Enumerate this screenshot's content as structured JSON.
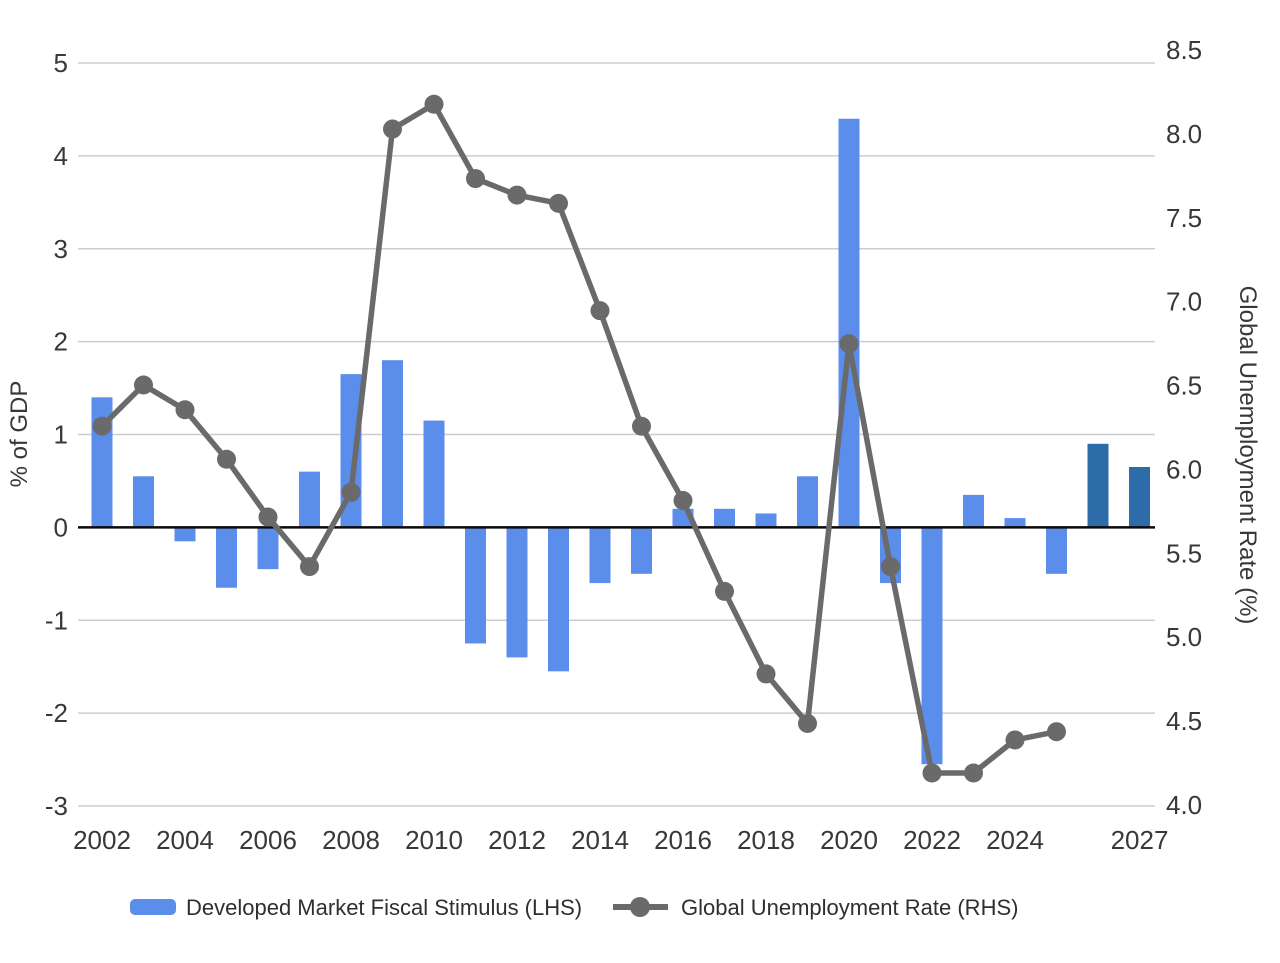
{
  "chart": {
    "title": "",
    "left_axis_title": "% of GDP",
    "right_axis_title": "Global Unemployment Rate (%)",
    "legend": {
      "bar_label": "Developed Market Fiscal Stimulus (LHS)",
      "line_label": "Global Unemployment Rate (RHS)"
    }
  },
  "chart_data": {
    "type": "combo_bar_line",
    "x": [
      2002,
      2003,
      2004,
      2005,
      2006,
      2007,
      2008,
      2009,
      2010,
      2011,
      2012,
      2013,
      2014,
      2015,
      2016,
      2017,
      2018,
      2019,
      2020,
      2021,
      2022,
      2023,
      2024,
      2025,
      2026,
      2027
    ],
    "x_tick_labels": [
      "2002",
      "2004",
      "2006",
      "2008",
      "2010",
      "2012",
      "2014",
      "2016",
      "2018",
      "2020",
      "2022",
      "2024",
      "2027"
    ],
    "left_axis": {
      "title": "% of GDP",
      "min": -3,
      "max": 5,
      "tick_step": 1,
      "tick_labels": [
        "5",
        "4",
        "3",
        "2",
        "1",
        "0",
        "-1",
        "-2",
        "-3"
      ]
    },
    "right_axis": {
      "title": "Global Unemployment Rate (%)",
      "min": 4.0,
      "max": 8.5,
      "tick_step": 0.5,
      "tick_labels": [
        "8.5",
        "8.0",
        "7.5",
        "7.0",
        "6.5",
        "6.0",
        "5.5",
        "5.0",
        "4.5",
        "4.0"
      ]
    },
    "grid": true,
    "legend_position": "bottom",
    "series": [
      {
        "name": "Developed Market Fiscal Stimulus (LHS)",
        "type": "bar",
        "axis": "left",
        "unit": "% of GDP",
        "color": "#5b8deb",
        "forecast_color": "#2d6ca8",
        "forecast_years": [
          2026,
          2027
        ],
        "values": [
          1.4,
          0.55,
          -0.15,
          -0.65,
          -0.45,
          0.6,
          1.65,
          1.8,
          1.15,
          -1.25,
          -1.4,
          -1.55,
          -0.6,
          -0.5,
          0.2,
          0.2,
          0.15,
          0.55,
          4.4,
          -0.6,
          -2.55,
          0.35,
          0.1,
          -0.5,
          0.9,
          0.65
        ]
      },
      {
        "name": "Global Unemployment Rate (RHS)",
        "type": "line",
        "axis": "right",
        "unit": "%",
        "color": "#6a6a6a",
        "values": [
          6.3,
          6.55,
          6.4,
          6.1,
          5.75,
          5.45,
          5.9,
          8.1,
          8.25,
          7.8,
          7.7,
          7.65,
          7.0,
          6.3,
          5.85,
          5.3,
          4.8,
          4.5,
          6.8,
          5.45,
          4.2,
          4.2,
          4.4,
          4.45,
          null,
          null
        ]
      }
    ],
    "style": {
      "gridline_color": "#cdcdcd",
      "zero_line_color": "#0a0a0a",
      "tick_text_color": "#383838",
      "legend_text_color": "#2f2f2f"
    }
  }
}
